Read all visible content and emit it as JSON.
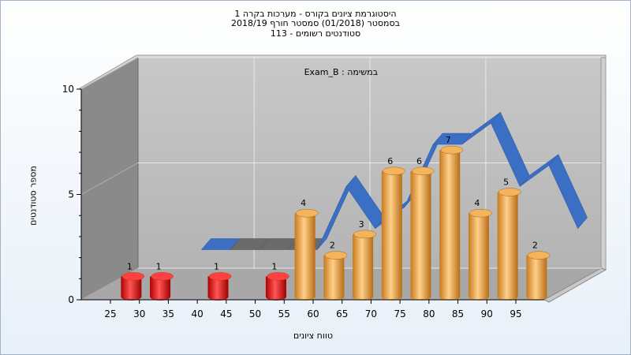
{
  "titles": {
    "line1": "היסטוגרמת ציונים בקורס - מערכות בקרה 1",
    "line2": "בסמסטר  (01/2018)  סמסטר חורף 2018/19",
    "line3": "סטודנטים רשומים - 113"
  },
  "chart_data": {
    "type": "bar",
    "exam_label": "Exam_B : במשימה",
    "xlabel": "טווח ציונים",
    "ylabel": "מספר סטודנטים",
    "ylim": [
      0,
      10
    ],
    "y_ticks": [
      0,
      5,
      10
    ],
    "x_ticks": [
      25,
      30,
      35,
      40,
      45,
      50,
      55,
      60,
      65,
      70,
      75,
      80,
      85,
      90,
      95
    ],
    "bars": [
      {
        "x": 27.5,
        "value": 1,
        "color": "red"
      },
      {
        "x": 32.5,
        "value": 1,
        "color": "red"
      },
      {
        "x": 42.5,
        "value": 1,
        "color": "red"
      },
      {
        "x": 52.5,
        "value": 1,
        "color": "red"
      },
      {
        "x": 57.5,
        "value": 4,
        "color": "orange"
      },
      {
        "x": 62.5,
        "value": 2,
        "color": "orange"
      },
      {
        "x": 67.5,
        "value": 3,
        "color": "orange"
      },
      {
        "x": 72.5,
        "value": 6,
        "color": "orange"
      },
      {
        "x": 77.5,
        "value": 6,
        "color": "orange"
      },
      {
        "x": 82.5,
        "value": 7,
        "color": "orange"
      },
      {
        "x": 87.5,
        "value": 4,
        "color": "orange"
      },
      {
        "x": 92.5,
        "value": 5,
        "color": "orange"
      },
      {
        "x": 97.5,
        "value": 2,
        "color": "orange"
      }
    ],
    "line_series": {
      "x": [
        32.5,
        37.5,
        42.5,
        47.5,
        52.5,
        57.5,
        62.5,
        67.5,
        72.5,
        77.5,
        82.5,
        87.5,
        92.5,
        97.5
      ],
      "values": [
        1,
        1,
        1,
        1,
        1,
        4,
        2,
        3,
        6,
        6,
        7,
        4,
        5,
        2
      ]
    },
    "grid": true,
    "colors": {
      "red_bar": "#e11010",
      "orange_bar": "#f0a040",
      "ribbon": "#3a6fc4",
      "ribbon_flat": "#6a6a6a",
      "back_wall": "#c0c0c0",
      "side_wall": "#8a8a8a",
      "floor": "#a8a8a8"
    }
  }
}
